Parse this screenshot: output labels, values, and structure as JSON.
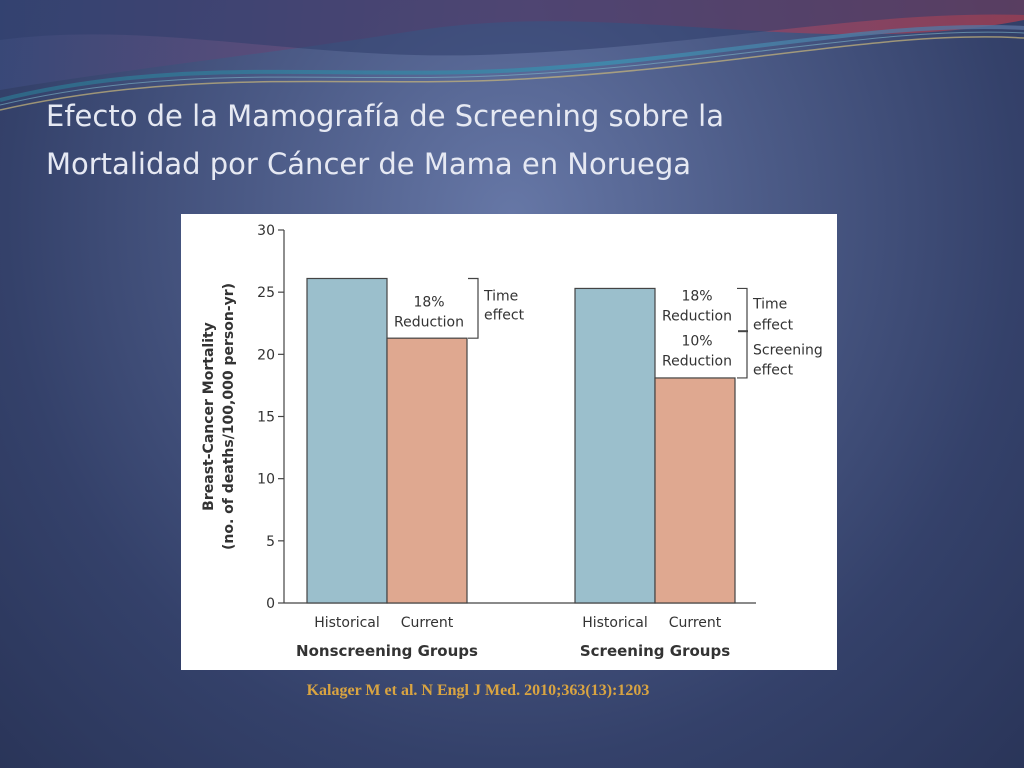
{
  "slide": {
    "title_line1": "Efecto de la Mamografía de Screening sobre la",
    "title_line2": "Mortalidad por Cáncer de Mama en Noruega",
    "citation": "Kalager M et al. N Engl J Med. 2010;363(13):1203"
  },
  "colors": {
    "historical_bar": "#9bbfcc",
    "current_bar": "#dfa890",
    "citation_text": "#d9a441"
  },
  "chart_data": {
    "type": "bar",
    "ylabel_line1": "Breast-Cancer Mortality",
    "ylabel_line2": "(no. of deaths/100,000 person-yr)",
    "ylim": [
      0,
      30
    ],
    "yticks": [
      0,
      5,
      10,
      15,
      20,
      25,
      30
    ],
    "groups": [
      {
        "name": "Nonscreening Groups",
        "bars": [
          {
            "label": "Historical",
            "value": 26.1,
            "kind": "historical"
          },
          {
            "label": "Current",
            "value": 21.3,
            "kind": "current"
          }
        ],
        "annotations": {
          "reduction": [
            "18%",
            "Reduction"
          ],
          "effect": [
            "Time",
            "effect"
          ]
        }
      },
      {
        "name": "Screening Groups",
        "bars": [
          {
            "label": "Historical",
            "value": 25.3,
            "kind": "historical"
          },
          {
            "label": "Current",
            "value": 18.1,
            "kind": "current"
          }
        ],
        "annotations": {
          "reduction1": [
            "18%",
            "Reduction"
          ],
          "reduction2": [
            "10%",
            "Reduction"
          ],
          "effect1": [
            "Time",
            "effect"
          ],
          "effect2": [
            "Screening",
            "effect"
          ]
        }
      }
    ],
    "grid": false,
    "legend": "none"
  }
}
